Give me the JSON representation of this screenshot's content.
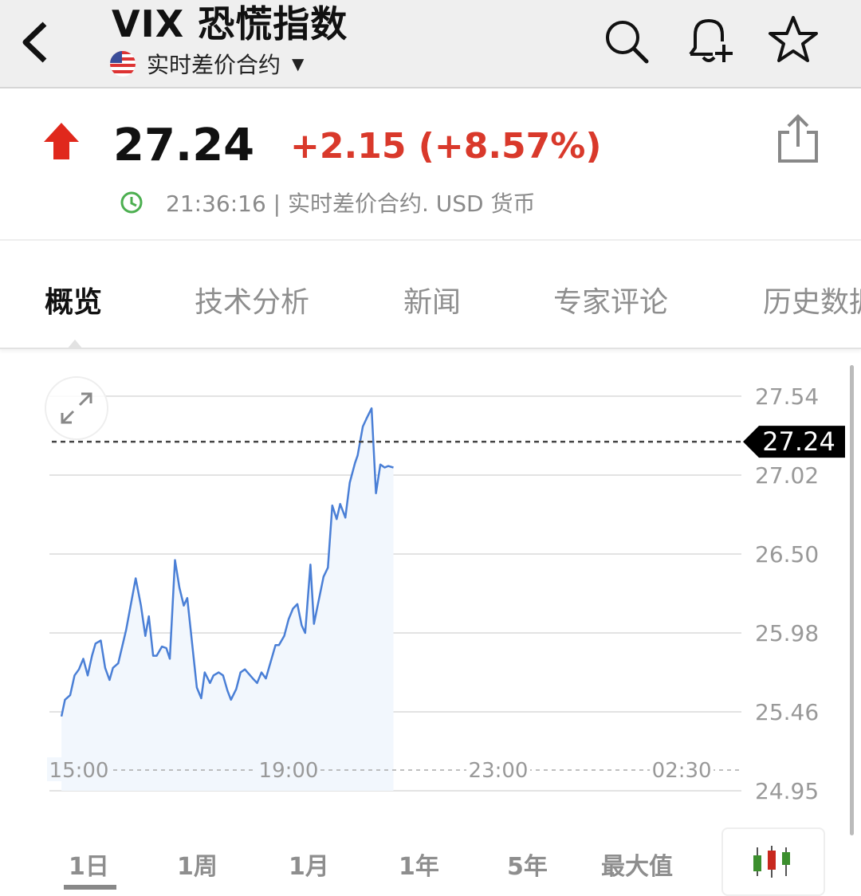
{
  "header": {
    "title": "VIX 恐慌指数",
    "subtitle": "实时差价合约",
    "icons": [
      "back-icon",
      "search-icon",
      "bell-plus-icon",
      "star-icon"
    ]
  },
  "quote": {
    "price": "27.24",
    "change": "+2.15 (+8.57%)",
    "direction": "up",
    "meta": "21:36:16 | 实时差价合约. USD 货币",
    "up_color": "#d9392b"
  },
  "tabs": [
    {
      "label": "概览",
      "active": true
    },
    {
      "label": "技术分析"
    },
    {
      "label": "新闻"
    },
    {
      "label": "专家评论"
    },
    {
      "label": "历史数据"
    }
  ],
  "ranges": [
    {
      "label": "1日",
      "active": true
    },
    {
      "label": "1周"
    },
    {
      "label": "1月"
    },
    {
      "label": "1年"
    },
    {
      "label": "5年"
    },
    {
      "label": "最大值"
    }
  ],
  "chart_data": {
    "type": "area",
    "line_color": "#4a7fd6",
    "current_value": "27.24",
    "y_ticks": [
      "27.54",
      "27.02",
      "26.50",
      "25.98",
      "25.46",
      "24.95"
    ],
    "x_ticks": [
      "15:00",
      "19:00",
      "23:00",
      "02:30"
    ],
    "grid": true,
    "points": [
      [
        "14:40",
        25.43
      ],
      [
        "14:44",
        25.54
      ],
      [
        "14:50",
        25.57
      ],
      [
        "14:55",
        25.7
      ],
      [
        "15:00",
        25.74
      ],
      [
        "15:05",
        25.81
      ],
      [
        "15:10",
        25.7
      ],
      [
        "15:15",
        25.83
      ],
      [
        "15:19",
        25.91
      ],
      [
        "15:25",
        25.93
      ],
      [
        "15:30",
        25.75
      ],
      [
        "15:35",
        25.67
      ],
      [
        "15:39",
        25.75
      ],
      [
        "15:45",
        25.78
      ],
      [
        "15:54",
        26.0
      ],
      [
        "16:05",
        26.34
      ],
      [
        "16:11",
        26.16
      ],
      [
        "16:16",
        25.96
      ],
      [
        "16:20",
        26.09
      ],
      [
        "16:25",
        25.83
      ],
      [
        "16:29",
        25.83
      ],
      [
        "16:35",
        25.89
      ],
      [
        "16:40",
        25.88
      ],
      [
        "16:44",
        25.81
      ],
      [
        "16:50",
        26.46
      ],
      [
        "16:55",
        26.28
      ],
      [
        "17:00",
        26.16
      ],
      [
        "17:04",
        26.21
      ],
      [
        "17:15",
        25.62
      ],
      [
        "17:20",
        25.55
      ],
      [
        "17:24",
        25.72
      ],
      [
        "17:30",
        25.65
      ],
      [
        "17:34",
        25.7
      ],
      [
        "17:40",
        25.72
      ],
      [
        "17:45",
        25.7
      ],
      [
        "17:50",
        25.6
      ],
      [
        "17:54",
        25.54
      ],
      [
        "18:00",
        25.61
      ],
      [
        "18:05",
        25.72
      ],
      [
        "18:10",
        25.74
      ],
      [
        "18:19",
        25.68
      ],
      [
        "18:24",
        25.65
      ],
      [
        "18:29",
        25.72
      ],
      [
        "18:34",
        25.68
      ],
      [
        "18:45",
        25.9
      ],
      [
        "18:49",
        25.9
      ],
      [
        "18:55",
        25.96
      ],
      [
        "19:00",
        26.07
      ],
      [
        "19:05",
        26.14
      ],
      [
        "19:10",
        26.17
      ],
      [
        "19:15",
        26.03
      ],
      [
        "19:19",
        25.98
      ],
      [
        "19:25",
        26.43
      ],
      [
        "19:29",
        26.04
      ],
      [
        "19:40",
        26.35
      ],
      [
        "19:45",
        26.41
      ],
      [
        "19:50",
        26.82
      ],
      [
        "19:55",
        26.73
      ],
      [
        "19:59",
        26.83
      ],
      [
        "20:05",
        26.74
      ],
      [
        "20:10",
        26.97
      ],
      [
        "20:16",
        27.1
      ],
      [
        "20:19",
        27.15
      ],
      [
        "20:25",
        27.34
      ],
      [
        "20:29",
        27.39
      ],
      [
        "20:35",
        27.46
      ],
      [
        "20:40",
        26.9
      ],
      [
        "20:45",
        27.09
      ],
      [
        "20:50",
        27.07
      ],
      [
        "20:54",
        27.08
      ],
      [
        "21:00",
        27.07
      ]
    ]
  }
}
